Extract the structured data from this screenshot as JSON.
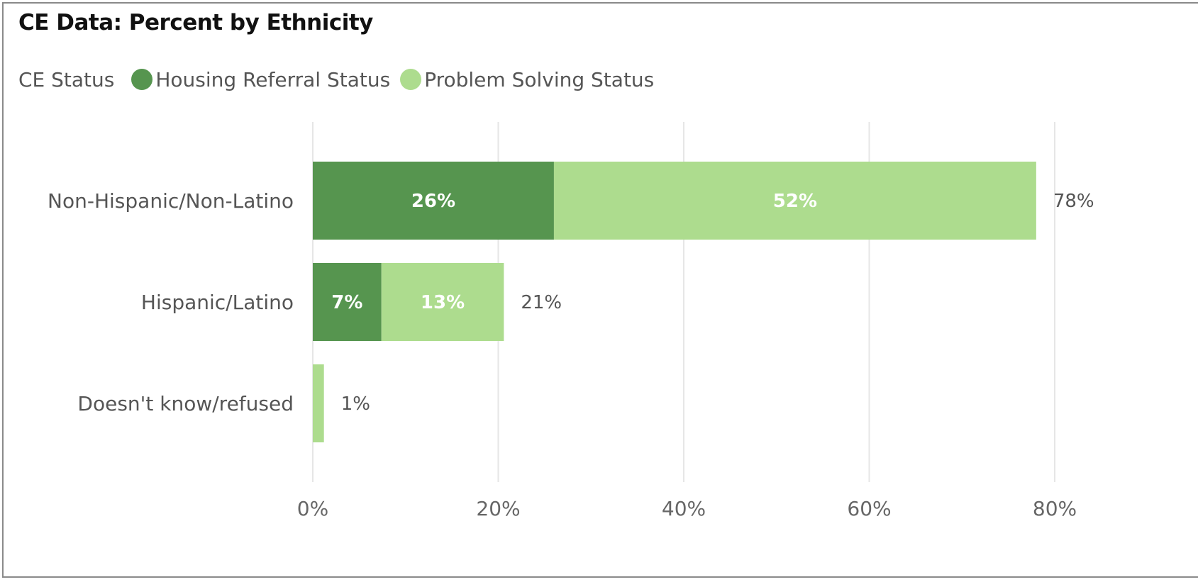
{
  "title": "CE Data: Percent by Ethnicity",
  "legend": {
    "title": "CE Status",
    "items": [
      {
        "label": "Housing Referral Status",
        "color": "#56954f"
      },
      {
        "label": "Problem Solving Status",
        "color": "#addc8e"
      }
    ]
  },
  "chart_data": {
    "type": "bar",
    "orientation": "horizontal",
    "stacked": true,
    "title": "CE Data: Percent by Ethnicity",
    "xlabel": "",
    "ylabel": "",
    "categories": [
      "Non-Hispanic/Non-Latino",
      "Hispanic/Latino",
      "Doesn't know/refused"
    ],
    "series": [
      {
        "name": "Housing Referral Status",
        "color": "#56954f",
        "values": [
          26,
          7.4,
          0
        ],
        "labels": [
          "26%",
          "7%",
          ""
        ]
      },
      {
        "name": "Problem Solving Status",
        "color": "#addc8e",
        "values": [
          52,
          13.2,
          1.2
        ],
        "labels": [
          "52%",
          "13%",
          ""
        ]
      }
    ],
    "totals": [
      "78%",
      "21%",
      "1%"
    ],
    "xlim": [
      0,
      80
    ],
    "xticks": [
      0,
      20,
      40,
      60,
      80
    ],
    "xtick_labels": [
      "0%",
      "20%",
      "40%",
      "60%",
      "80%"
    ],
    "grid": true,
    "legend_position": "top-left"
  }
}
